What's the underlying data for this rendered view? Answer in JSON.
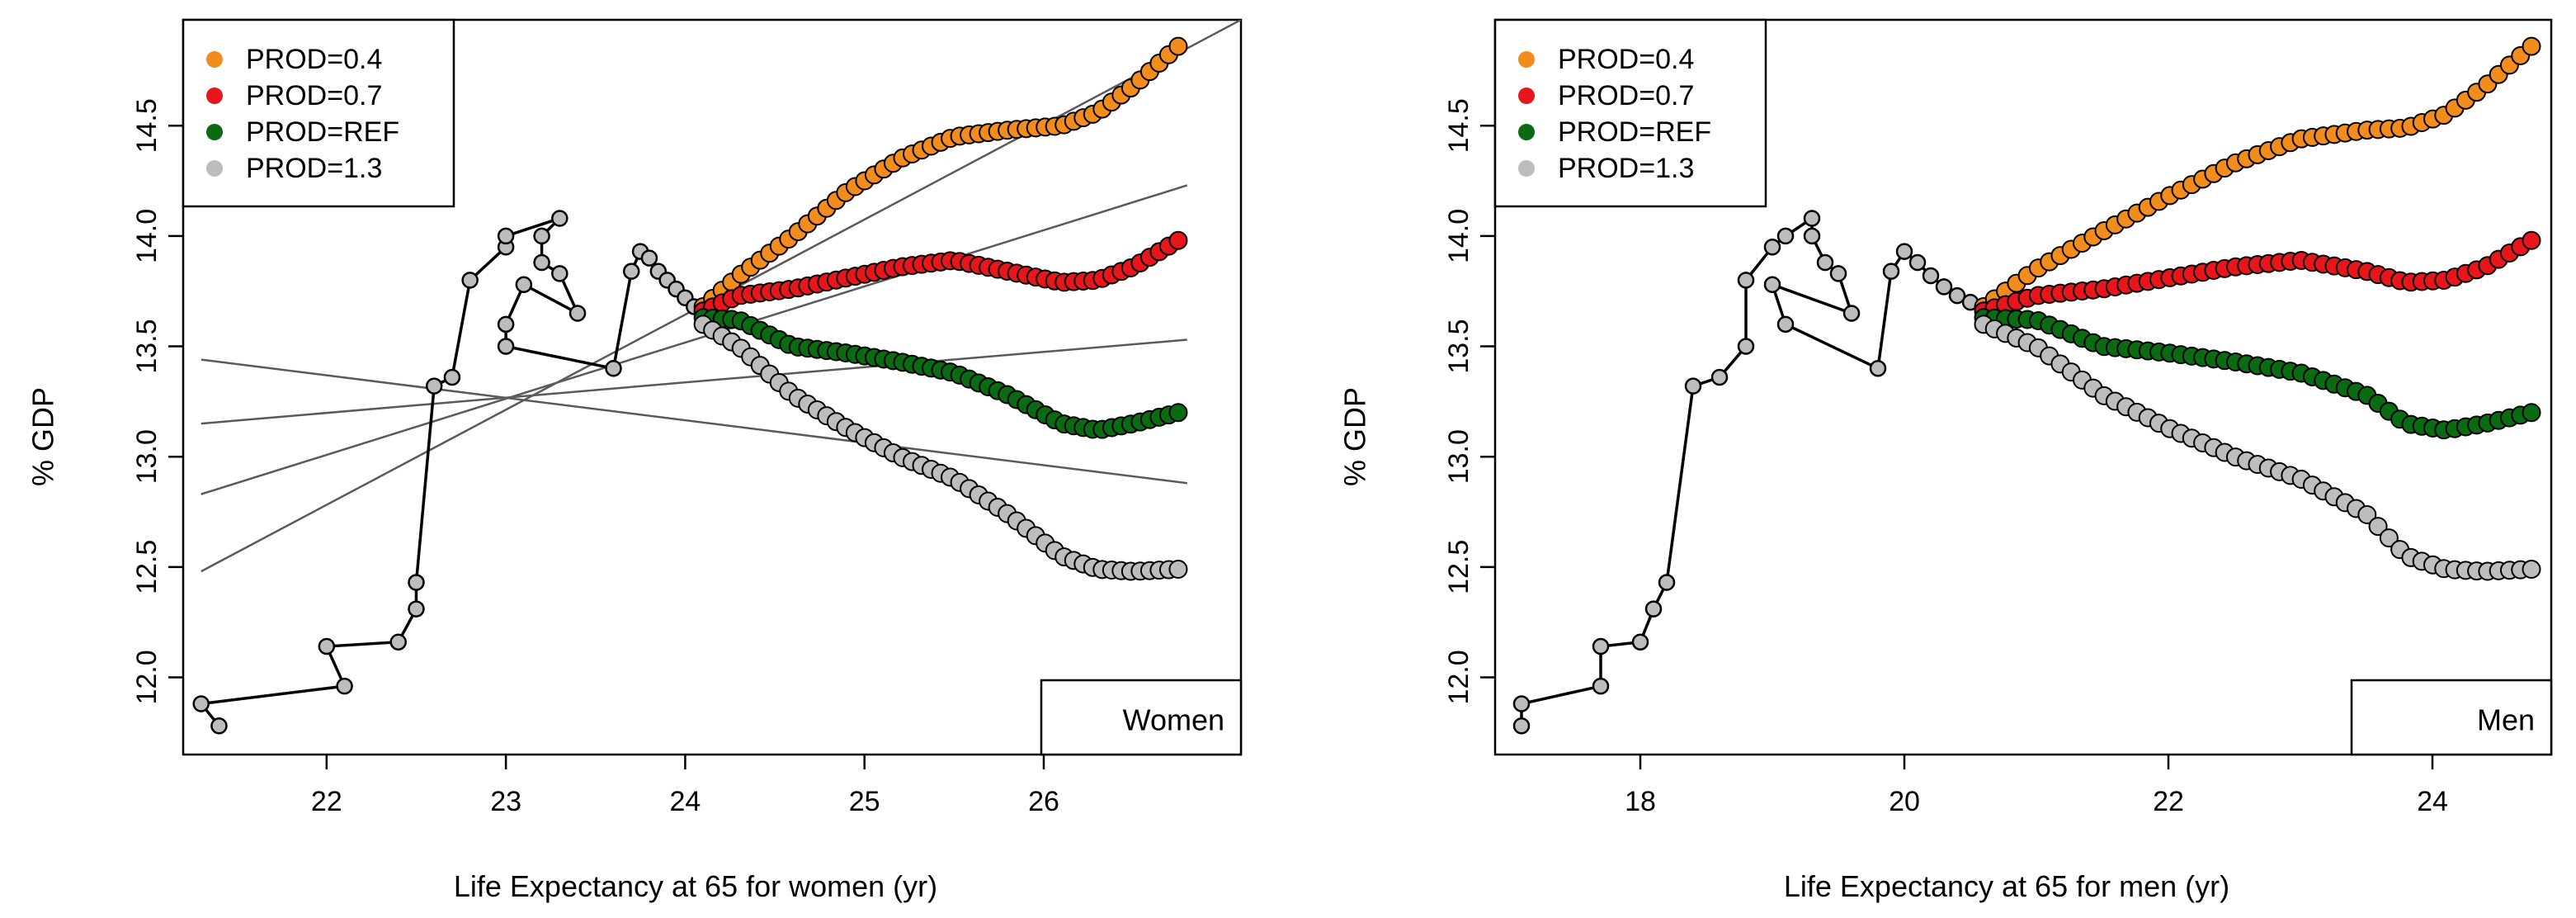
{
  "chart_data": [
    {
      "type": "scatter",
      "panel_label": "Women",
      "xlabel": "Life Expectancy at 65 for women (yr)",
      "ylabel": "% GDP",
      "xlim": [
        21.2,
        27.1
      ],
      "ylim": [
        11.65,
        14.98
      ],
      "x_ticks": [
        22,
        23,
        24,
        25,
        26
      ],
      "x_tick_labels": [
        "22",
        "23",
        "24",
        "25",
        "26"
      ],
      "y_ticks": [
        12.0,
        12.5,
        13.0,
        13.5,
        14.0,
        14.5
      ],
      "y_tick_labels": [
        "12.0",
        "12.5",
        "13.0",
        "13.5",
        "14.0",
        "14.5"
      ],
      "legend": {
        "position": "top-left",
        "entries": [
          {
            "label": "PROD=0.4",
            "color": "#f28c1c"
          },
          {
            "label": "PROD=0.7",
            "color": "#e8151b"
          },
          {
            "label": "PROD=REF",
            "color": "#0b6b12"
          },
          {
            "label": "PROD=1.3",
            "color": "#bdbdbd"
          }
        ]
      },
      "history": {
        "color": "#bdbdbd",
        "points": [
          [
            21.4,
            11.78
          ],
          [
            21.3,
            11.88
          ],
          [
            22.1,
            11.96
          ],
          [
            22.0,
            12.14
          ],
          [
            22.4,
            12.16
          ],
          [
            22.5,
            12.31
          ],
          [
            22.5,
            12.43
          ],
          [
            22.6,
            13.32
          ],
          [
            22.7,
            13.36
          ],
          [
            22.8,
            13.8
          ],
          [
            23.0,
            13.95
          ],
          [
            23.0,
            14.0
          ],
          [
            23.3,
            14.08
          ],
          [
            23.2,
            14.0
          ],
          [
            23.2,
            13.88
          ],
          [
            23.3,
            13.83
          ],
          [
            23.4,
            13.65
          ],
          [
            23.1,
            13.78
          ],
          [
            23.0,
            13.6
          ],
          [
            23.0,
            13.5
          ],
          [
            23.6,
            13.4
          ],
          [
            23.7,
            13.84
          ],
          [
            23.75,
            13.93
          ],
          [
            23.8,
            13.9
          ],
          [
            23.85,
            13.84
          ],
          [
            23.9,
            13.8
          ],
          [
            23.95,
            13.76
          ],
          [
            24.0,
            13.72
          ],
          [
            24.05,
            13.68
          ],
          [
            24.1,
            13.64
          ]
        ]
      },
      "fit_lines": [
        {
          "color": "#5a5a5a",
          "from": [
            21.3,
            12.48
          ],
          "to": [
            27.1,
            14.98
          ]
        },
        {
          "color": "#5a5a5a",
          "from": [
            21.3,
            12.83
          ],
          "to": [
            26.8,
            14.23
          ]
        },
        {
          "color": "#5a5a5a",
          "from": [
            21.3,
            13.15
          ],
          "to": [
            26.8,
            13.53
          ]
        },
        {
          "color": "#5a5a5a",
          "from": [
            21.3,
            13.44
          ],
          "to": [
            26.8,
            12.88
          ]
        }
      ],
      "series": [
        {
          "name": "PROD=0.4",
          "color": "#f28c1c",
          "x_start": 24.1,
          "x_end": 26.75,
          "n": 51,
          "knots": [
            [
              24.1,
              13.68
            ],
            [
              24.3,
              13.82
            ],
            [
              24.6,
              14.0
            ],
            [
              24.9,
              14.2
            ],
            [
              25.2,
              14.35
            ],
            [
              25.5,
              14.45
            ],
            [
              25.8,
              14.48
            ],
            [
              26.1,
              14.5
            ],
            [
              26.3,
              14.56
            ],
            [
              26.5,
              14.68
            ],
            [
              26.75,
              14.86
            ]
          ]
        },
        {
          "name": "PROD=0.7",
          "color": "#e8151b",
          "x_start": 24.1,
          "x_end": 26.75,
          "n": 51,
          "knots": [
            [
              24.1,
              13.66
            ],
            [
              24.3,
              13.73
            ],
            [
              24.6,
              13.76
            ],
            [
              24.9,
              13.81
            ],
            [
              25.2,
              13.86
            ],
            [
              25.5,
              13.89
            ],
            [
              25.8,
              13.84
            ],
            [
              26.1,
              13.79
            ],
            [
              26.3,
              13.8
            ],
            [
              26.5,
              13.86
            ],
            [
              26.75,
              13.98
            ]
          ]
        },
        {
          "name": "PROD=REF",
          "color": "#0b6b12",
          "x_start": 24.1,
          "x_end": 26.75,
          "n": 51,
          "knots": [
            [
              24.1,
              13.63
            ],
            [
              24.3,
              13.62
            ],
            [
              24.6,
              13.5
            ],
            [
              24.9,
              13.47
            ],
            [
              25.2,
              13.43
            ],
            [
              25.5,
              13.38
            ],
            [
              25.8,
              13.28
            ],
            [
              26.1,
              13.15
            ],
            [
              26.3,
              13.12
            ],
            [
              26.5,
              13.15
            ],
            [
              26.75,
              13.2
            ]
          ]
        },
        {
          "name": "PROD=1.3",
          "color": "#bdbdbd",
          "x_start": 24.1,
          "x_end": 26.75,
          "n": 51,
          "knots": [
            [
              24.1,
              13.6
            ],
            [
              24.3,
              13.5
            ],
            [
              24.6,
              13.28
            ],
            [
              24.9,
              13.13
            ],
            [
              25.2,
              13.0
            ],
            [
              25.5,
              12.9
            ],
            [
              25.8,
              12.74
            ],
            [
              26.1,
              12.55
            ],
            [
              26.3,
              12.49
            ],
            [
              26.5,
              12.48
            ],
            [
              26.75,
              12.49
            ]
          ]
        }
      ]
    },
    {
      "type": "scatter",
      "panel_label": "Men",
      "xlabel": "Life Expectancy at 65 for men (yr)",
      "ylabel": "% GDP",
      "xlim": [
        16.9,
        24.9
      ],
      "ylim": [
        11.65,
        14.98
      ],
      "x_ticks": [
        18,
        20,
        22,
        24
      ],
      "x_tick_labels": [
        "18",
        "20",
        "22",
        "24"
      ],
      "y_ticks": [
        12.0,
        12.5,
        13.0,
        13.5,
        14.0,
        14.5
      ],
      "y_tick_labels": [
        "12.0",
        "12.5",
        "13.0",
        "13.5",
        "14.0",
        "14.5"
      ],
      "legend": {
        "position": "top-left",
        "entries": [
          {
            "label": "PROD=0.4",
            "color": "#f28c1c"
          },
          {
            "label": "PROD=0.7",
            "color": "#e8151b"
          },
          {
            "label": "PROD=REF",
            "color": "#0b6b12"
          },
          {
            "label": "PROD=1.3",
            "color": "#bdbdbd"
          }
        ]
      },
      "history": {
        "color": "#bdbdbd",
        "points": [
          [
            17.1,
            11.78
          ],
          [
            17.1,
            11.88
          ],
          [
            17.7,
            11.96
          ],
          [
            17.7,
            12.14
          ],
          [
            18.0,
            12.16
          ],
          [
            18.1,
            12.31
          ],
          [
            18.2,
            12.43
          ],
          [
            18.4,
            13.32
          ],
          [
            18.6,
            13.36
          ],
          [
            18.8,
            13.5
          ],
          [
            18.8,
            13.8
          ],
          [
            19.0,
            13.95
          ],
          [
            19.1,
            14.0
          ],
          [
            19.3,
            14.08
          ],
          [
            19.3,
            14.0
          ],
          [
            19.4,
            13.88
          ],
          [
            19.5,
            13.83
          ],
          [
            19.6,
            13.65
          ],
          [
            19.0,
            13.78
          ],
          [
            19.1,
            13.6
          ],
          [
            19.8,
            13.4
          ],
          [
            19.9,
            13.84
          ],
          [
            20.0,
            13.93
          ],
          [
            20.1,
            13.88
          ],
          [
            20.2,
            13.82
          ],
          [
            20.3,
            13.77
          ],
          [
            20.4,
            13.73
          ],
          [
            20.5,
            13.7
          ],
          [
            20.6,
            13.67
          ]
        ]
      },
      "fit_lines": [],
      "series": [
        {
          "name": "PROD=0.4",
          "color": "#f28c1c",
          "x_start": 20.6,
          "x_end": 24.75,
          "n": 51,
          "knots": [
            [
              20.6,
              13.68
            ],
            [
              21.0,
              13.85
            ],
            [
              21.5,
              14.02
            ],
            [
              22.0,
              14.18
            ],
            [
              22.5,
              14.33
            ],
            [
              23.0,
              14.44
            ],
            [
              23.5,
              14.48
            ],
            [
              23.8,
              14.49
            ],
            [
              24.1,
              14.55
            ],
            [
              24.4,
              14.68
            ],
            [
              24.75,
              14.86
            ]
          ]
        },
        {
          "name": "PROD=0.7",
          "color": "#e8151b",
          "x_start": 20.6,
          "x_end": 24.75,
          "n": 51,
          "knots": [
            [
              20.6,
              13.66
            ],
            [
              21.0,
              13.73
            ],
            [
              21.5,
              13.76
            ],
            [
              22.0,
              13.81
            ],
            [
              22.5,
              13.86
            ],
            [
              23.0,
              13.89
            ],
            [
              23.5,
              13.84
            ],
            [
              23.8,
              13.79
            ],
            [
              24.1,
              13.8
            ],
            [
              24.4,
              13.86
            ],
            [
              24.75,
              13.98
            ]
          ]
        },
        {
          "name": "PROD=REF",
          "color": "#0b6b12",
          "x_start": 20.6,
          "x_end": 24.75,
          "n": 51,
          "knots": [
            [
              20.6,
              13.63
            ],
            [
              21.0,
              13.62
            ],
            [
              21.5,
              13.5
            ],
            [
              22.0,
              13.47
            ],
            [
              22.5,
              13.43
            ],
            [
              23.0,
              13.38
            ],
            [
              23.5,
              13.28
            ],
            [
              23.8,
              13.15
            ],
            [
              24.1,
              13.12
            ],
            [
              24.4,
              13.15
            ],
            [
              24.75,
              13.2
            ]
          ]
        },
        {
          "name": "PROD=1.3",
          "color": "#bdbdbd",
          "x_start": 20.6,
          "x_end": 24.75,
          "n": 51,
          "knots": [
            [
              20.6,
              13.6
            ],
            [
              21.0,
              13.5
            ],
            [
              21.5,
              13.28
            ],
            [
              22.0,
              13.13
            ],
            [
              22.5,
              13.0
            ],
            [
              23.0,
              12.9
            ],
            [
              23.5,
              12.74
            ],
            [
              23.8,
              12.55
            ],
            [
              24.1,
              12.49
            ],
            [
              24.4,
              12.48
            ],
            [
              24.75,
              12.49
            ]
          ]
        }
      ]
    }
  ]
}
